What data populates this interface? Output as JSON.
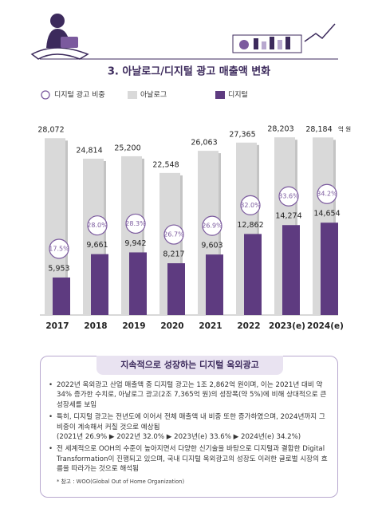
{
  "chart_data": {
    "type": "bar",
    "title": "3. 아날로그/디지털 광고 매출액 변화",
    "categories": [
      "2017",
      "2018",
      "2019",
      "2020",
      "2021",
      "2022",
      "2023(e)",
      "2024(e)"
    ],
    "series": [
      {
        "name": "아날로그",
        "color": "#d9d9d9",
        "values": [
          28072,
          24814,
          25200,
          22548,
          26063,
          27365,
          28203,
          28184
        ],
        "value_labels": [
          "28,072",
          "24,814",
          "25,200",
          "22,548",
          "26,063",
          "27,365",
          "28,203",
          "28,184"
        ]
      },
      {
        "name": "디지털",
        "color": "#5e3b80",
        "values": [
          5953,
          9661,
          9942,
          8217,
          9603,
          12862,
          14274,
          14654
        ],
        "value_labels": [
          "5,953",
          "9,661",
          "9,942",
          "8,217",
          "9,603",
          "12,862",
          "14,274",
          "14,654"
        ]
      },
      {
        "name": "디지털 광고 비중",
        "color": "#7b5a9e",
        "values": [
          17.5,
          28.0,
          28.3,
          26.7,
          26.9,
          32.0,
          33.6,
          34.2
        ],
        "value_labels": [
          "17.5%",
          "28.0%",
          "28.3%",
          "26.7%",
          "26.9%",
          "32.0%",
          "33.6%",
          "34.2%"
        ]
      }
    ],
    "unit": "억 원",
    "ylim": [
      0,
      30000
    ]
  },
  "summary": {
    "title": "지속적으로 성장하는 디지털 옥외광고",
    "bullets": [
      {
        "text": "2022년 옥외광고 산업 매출액 중 디지털 광고는 1조 2,862억 원이며, 이는 2021년 대비 약 34% 증가한 수치로, 아날로그 광고(2조 7,365억 원)의 성장폭(약 5%)에 비해 상대적으로 큰 성장세를 보임"
      },
      {
        "text": "특히, 디지털 광고는 전년도에 이어서 전체 매출액 내 비중 또한 증가하였으며, 2024년까지 그 비중이 계속해서 커질 것으로 예상됨",
        "sub": "(2021년 26.9% ▶ 2022년 32.0% ▶ 2023년(e) 33.6% ▶ 2024년(e) 34.2%)"
      },
      {
        "text": "전 세계적으로 OOH의 수준이 높아지면서 다양한 신기술을 바탕으로 디지털과 결합한 Digital Transformation이 진행되고 있으며, 국내 디지털 옥외광고의 성장도 이러한 글로벌 시장의 흐름을 따라가는 것으로 해석됨"
      }
    ],
    "note": "* 참고 : WOO(Global Out of Home Organization)"
  }
}
